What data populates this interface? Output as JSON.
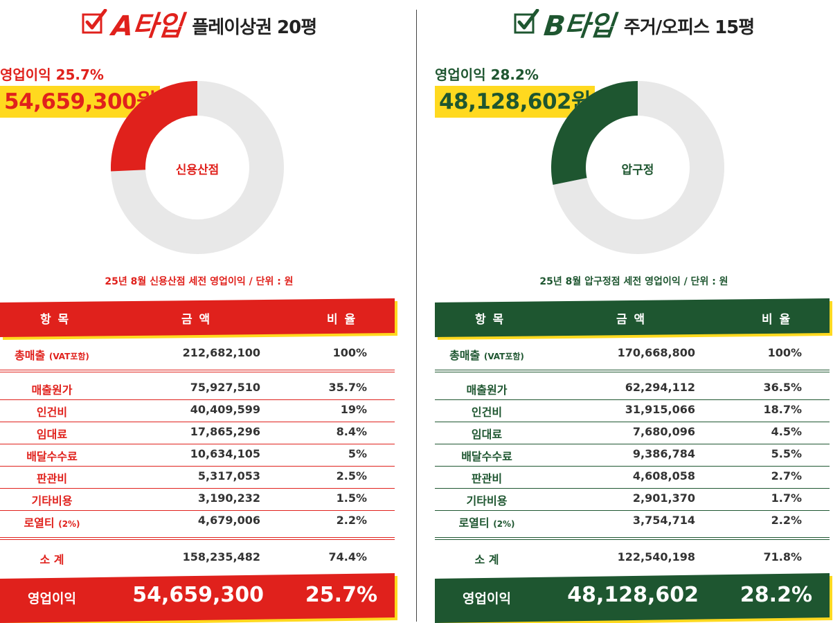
{
  "colors": {
    "red": "#e0211c",
    "green": "#1e5630",
    "yellow": "#ffd91f",
    "ring": "#e8e8e8"
  },
  "panels": [
    {
      "type_label": "A타입",
      "subtitle": "플레이상권 20평",
      "profit_label": "영업이익 25.7%",
      "profit_amount": "54,659,300원",
      "donut_center": "신용산점",
      "donut_fraction": 0.257,
      "caption": "25년 8월 신용산점 세전 영업이익 / 단위 : 원",
      "headers": {
        "item": "항 목",
        "amount": "금 액",
        "ratio": "비 율"
      },
      "total_sales": {
        "name": "총매출",
        "name_note": "(VAT포함)",
        "amount": "212,682,100",
        "ratio": "100%"
      },
      "rows": [
        {
          "name": "매출원가",
          "note": "",
          "amount": "75,927,510",
          "ratio": "35.7%"
        },
        {
          "name": "인건비",
          "note": "",
          "amount": "40,409,599",
          "ratio": "19%"
        },
        {
          "name": "임대료",
          "note": "",
          "amount": "17,865,296",
          "ratio": "8.4%"
        },
        {
          "name": "배달수수료",
          "note": "",
          "amount": "10,634,105",
          "ratio": "5%"
        },
        {
          "name": "판관비",
          "note": "",
          "amount": "5,317,053",
          "ratio": "2.5%"
        },
        {
          "name": "기타비용",
          "note": "",
          "amount": "3,190,232",
          "ratio": "1.5%"
        },
        {
          "name": "로열티",
          "note": "(2%)",
          "amount": "4,679,006",
          "ratio": "2.2%"
        }
      ],
      "subtotal": {
        "name": "소 계",
        "amount": "158,235,482",
        "ratio": "74.4%"
      },
      "operating": {
        "name": "영업이익",
        "amount": "54,659,300",
        "ratio": "25.7%"
      }
    },
    {
      "type_label": "B타입",
      "subtitle": "주거/오피스 15평",
      "profit_label": "영업이익 28.2%",
      "profit_amount": "48,128,602원",
      "donut_center": "압구정",
      "donut_fraction": 0.282,
      "caption": "25년 8월 압구정점 세전 영업이익 / 단위 : 원",
      "headers": {
        "item": "항 목",
        "amount": "금 액",
        "ratio": "비 율"
      },
      "total_sales": {
        "name": "총매출",
        "name_note": "(VAT포함)",
        "amount": "170,668,800",
        "ratio": "100%"
      },
      "rows": [
        {
          "name": "매출원가",
          "note": "",
          "amount": "62,294,112",
          "ratio": "36.5%"
        },
        {
          "name": "인건비",
          "note": "",
          "amount": "31,915,066",
          "ratio": "18.7%"
        },
        {
          "name": "임대료",
          "note": "",
          "amount": "7,680,096",
          "ratio": "4.5%"
        },
        {
          "name": "배달수수료",
          "note": "",
          "amount": "9,386,784",
          "ratio": "5.5%"
        },
        {
          "name": "판관비",
          "note": "",
          "amount": "4,608,058",
          "ratio": "2.7%"
        },
        {
          "name": "기타비용",
          "note": "",
          "amount": "2,901,370",
          "ratio": "1.7%"
        },
        {
          "name": "로열티",
          "note": "(2%)",
          "amount": "3,754,714",
          "ratio": "2.2%"
        }
      ],
      "subtotal": {
        "name": "소 계",
        "amount": "122,540,198",
        "ratio": "71.8%"
      },
      "operating": {
        "name": "영업이익",
        "amount": "48,128,602",
        "ratio": "28.2%"
      }
    }
  ]
}
